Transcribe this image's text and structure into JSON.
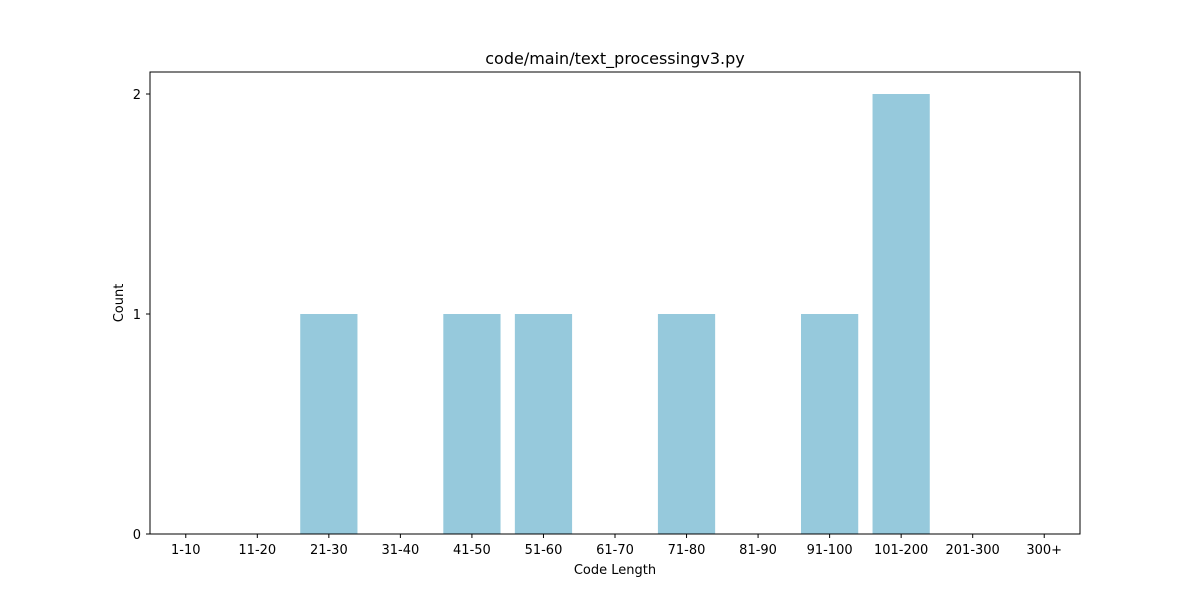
{
  "chart_data": {
    "type": "bar",
    "title": "code/main/text_processingv3.py",
    "xlabel": "Code Length",
    "ylabel": "Count",
    "categories": [
      "1-10",
      "11-20",
      "21-30",
      "31-40",
      "41-50",
      "51-60",
      "61-70",
      "71-80",
      "81-90",
      "91-100",
      "101-200",
      "201-300",
      "300+"
    ],
    "values": [
      0,
      0,
      1,
      0,
      1,
      1,
      0,
      1,
      0,
      1,
      2,
      0,
      0
    ],
    "yticks": [
      0,
      1,
      2
    ],
    "ylim": [
      0,
      2.1
    ],
    "bar_color": "#96c9dc",
    "grid": false
  }
}
